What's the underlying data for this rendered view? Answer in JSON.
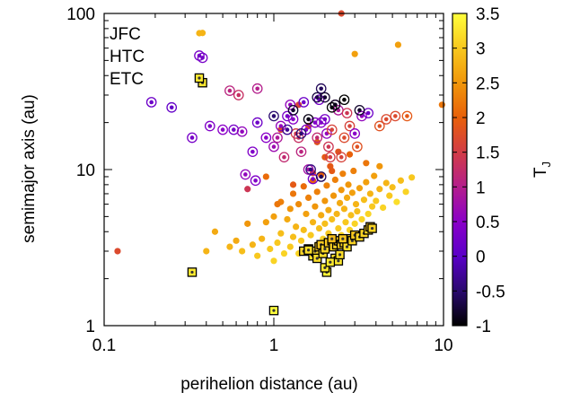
{
  "chart_data": {
    "type": "scatter",
    "title": "",
    "xlabel": "perihelion distance (au)",
    "ylabel": "semimajor axis (au)",
    "x_scale": "log",
    "y_scale": "log",
    "xlim": [
      0.1,
      10
    ],
    "ylim": [
      1,
      100
    ],
    "xticks": [
      "0.1",
      "1",
      "10"
    ],
    "yticks": [
      "1",
      "10",
      "100"
    ],
    "grid": false,
    "legend_position": "top-left",
    "legend": [
      {
        "label": "JFC",
        "marker": "dot"
      },
      {
        "label": "HTC",
        "marker": "ringed-dot"
      },
      {
        "label": "ETC",
        "marker": "boxed-dot"
      }
    ],
    "colorbar": {
      "label": "T",
      "label_subscript": "J",
      "range": [
        -1,
        3.5
      ],
      "ticks": [
        "3.5",
        "3",
        "2.5",
        "2",
        "1.5",
        "1",
        "0.5",
        "0",
        "-0.5",
        "-1"
      ],
      "colors": [
        "#000000",
        "#2a0a6e",
        "#5a00c8",
        "#8a00c8",
        "#b41e8c",
        "#d23c46",
        "#e8600a",
        "#f0960a",
        "#f8c81e",
        "#ffff3c"
      ]
    },
    "series": [
      {
        "name": "JFC",
        "marker": "dot",
        "points": [
          [
            0.12,
            3.0,
            1.7
          ],
          [
            0.4,
            3.0,
            2.8
          ],
          [
            0.45,
            4.0,
            2.7
          ],
          [
            0.55,
            3.2,
            2.8
          ],
          [
            0.6,
            3.5,
            2.7
          ],
          [
            0.65,
            3.0,
            2.9
          ],
          [
            0.7,
            4.5,
            2.5
          ],
          [
            0.75,
            3.3,
            2.8
          ],
          [
            0.8,
            2.8,
            3.0
          ],
          [
            0.85,
            3.6,
            2.8
          ],
          [
            0.9,
            4.6,
            2.6
          ],
          [
            0.95,
            3.1,
            3.0
          ],
          [
            1.0,
            5.0,
            2.6
          ],
          [
            1.0,
            2.6,
            3.1
          ],
          [
            1.05,
            3.4,
            3.0
          ],
          [
            1.1,
            3.9,
            2.9
          ],
          [
            1.1,
            6.2,
            2.3
          ],
          [
            1.15,
            2.9,
            3.1
          ],
          [
            1.2,
            4.8,
            2.7
          ],
          [
            1.25,
            3.2,
            3.0
          ],
          [
            1.25,
            5.6,
            2.5
          ],
          [
            1.3,
            3.7,
            2.9
          ],
          [
            1.3,
            7.0,
            2.2
          ],
          [
            1.35,
            4.3,
            2.8
          ],
          [
            1.4,
            2.9,
            3.1
          ],
          [
            1.4,
            6.0,
            2.4
          ],
          [
            1.45,
            3.5,
            3.0
          ],
          [
            1.5,
            4.1,
            2.9
          ],
          [
            1.5,
            7.8,
            2.1
          ],
          [
            1.55,
            5.2,
            2.6
          ],
          [
            1.6,
            3.0,
            3.1
          ],
          [
            1.6,
            6.6,
            2.3
          ],
          [
            1.65,
            3.8,
            3.0
          ],
          [
            1.7,
            4.6,
            2.8
          ],
          [
            1.7,
            8.5,
            2.0
          ],
          [
            1.75,
            5.8,
            2.5
          ],
          [
            1.8,
            3.3,
            3.1
          ],
          [
            1.8,
            7.2,
            2.3
          ],
          [
            1.85,
            4.2,
            2.9
          ],
          [
            1.9,
            5.1,
            2.7
          ],
          [
            1.9,
            9.2,
            2.0
          ],
          [
            1.95,
            3.6,
            3.1
          ],
          [
            2.0,
            6.3,
            2.5
          ],
          [
            2.0,
            4.5,
            2.9
          ],
          [
            2.05,
            7.9,
            2.3
          ],
          [
            2.1,
            3.9,
            3.0
          ],
          [
            2.1,
            5.5,
            2.7
          ],
          [
            2.15,
            10.5,
            1.9
          ],
          [
            2.2,
            4.8,
            2.9
          ],
          [
            2.25,
            6.8,
            2.5
          ],
          [
            2.3,
            3.5,
            3.2
          ],
          [
            2.3,
            8.6,
            2.3
          ],
          [
            2.35,
            5.2,
            2.8
          ],
          [
            2.4,
            4.2,
            3.0
          ],
          [
            2.45,
            6.1,
            2.7
          ],
          [
            2.5,
            7.4,
            2.5
          ],
          [
            2.5,
            3.8,
            3.1
          ],
          [
            2.55,
            9.4,
            2.3
          ],
          [
            2.6,
            5.6,
            2.8
          ],
          [
            2.65,
            4.6,
            3.0
          ],
          [
            2.7,
            6.6,
            2.7
          ],
          [
            2.75,
            8.0,
            2.5
          ],
          [
            2.8,
            4.1,
            3.1
          ],
          [
            2.85,
            5.1,
            2.9
          ],
          [
            2.9,
            7.1,
            2.6
          ],
          [
            2.95,
            9.8,
            2.3
          ],
          [
            3.0,
            4.5,
            3.1
          ],
          [
            3.05,
            6.0,
            2.8
          ],
          [
            3.1,
            5.4,
            2.9
          ],
          [
            3.2,
            7.6,
            2.6
          ],
          [
            3.3,
            4.8,
            3.1
          ],
          [
            3.4,
            6.4,
            2.9
          ],
          [
            3.5,
            8.3,
            2.6
          ],
          [
            3.6,
            5.2,
            3.1
          ],
          [
            3.7,
            7.0,
            2.8
          ],
          [
            3.8,
            5.8,
            3.0
          ],
          [
            3.9,
            9.1,
            2.6
          ],
          [
            4.0,
            6.3,
            3.0
          ],
          [
            4.2,
            7.5,
            2.8
          ],
          [
            4.4,
            5.7,
            3.1
          ],
          [
            4.6,
            8.2,
            2.8
          ],
          [
            4.8,
            6.8,
            3.0
          ],
          [
            5.0,
            7.7,
            2.9
          ],
          [
            5.3,
            6.2,
            3.2
          ],
          [
            5.6,
            8.5,
            2.9
          ],
          [
            6.0,
            7.2,
            3.1
          ],
          [
            6.5,
            8.9,
            3.0
          ],
          [
            0.38,
            75,
            2.8
          ],
          [
            5.4,
            63,
            2.6
          ],
          [
            9.8,
            26,
            2.2
          ],
          [
            2.5,
            100,
            1.7
          ],
          [
            3.0,
            55,
            2.6
          ],
          [
            2.0,
            12,
            1.9
          ],
          [
            1.8,
            15,
            1.8
          ],
          [
            2.4,
            13,
            1.8
          ],
          [
            1.1,
            18,
            1.7
          ],
          [
            1.6,
            19,
            1.6
          ],
          [
            1.4,
            26,
            1.6
          ],
          [
            3.5,
            11,
            2.2
          ],
          [
            4.2,
            10.5,
            2.5
          ],
          [
            2.8,
            12.5,
            2.0
          ],
          [
            0.7,
            7.5,
            1.4
          ],
          [
            1.7,
            9.5,
            1.7
          ],
          [
            1.3,
            8,
            1.9
          ],
          [
            2.2,
            9.8,
            1.9
          ],
          [
            0.9,
            9,
            2.1
          ],
          [
            1.05,
            6,
            2.2
          ]
        ]
      },
      {
        "name": "HTC",
        "marker": "ringed-dot",
        "points": [
          [
            0.38,
            52,
            0.3
          ],
          [
            0.19,
            27,
            0.2
          ],
          [
            0.25,
            25,
            0.1
          ],
          [
            0.33,
            16,
            0.3
          ],
          [
            0.42,
            19,
            0.4
          ],
          [
            0.5,
            18,
            0.5
          ],
          [
            0.58,
            18,
            0.3
          ],
          [
            0.65,
            17.5,
            0.6
          ],
          [
            0.68,
            9.3,
            0.6
          ],
          [
            0.75,
            13,
            0.4
          ],
          [
            0.78,
            8.5,
            0.4
          ],
          [
            0.8,
            20,
            0.2
          ],
          [
            0.55,
            32,
            1.1
          ],
          [
            0.62,
            30,
            1.3
          ],
          [
            0.8,
            33,
            1.0
          ],
          [
            0.9,
            16,
            0.5
          ],
          [
            1.0,
            14,
            0.7
          ],
          [
            1.05,
            16,
            0.9
          ],
          [
            1.1,
            19,
            0.6
          ],
          [
            1.15,
            12,
            1.2
          ],
          [
            1.2,
            22,
            0.3
          ],
          [
            1.25,
            26,
            0.6
          ],
          [
            1.3,
            21,
            0.5
          ],
          [
            1.35,
            17,
            1.5
          ],
          [
            1.4,
            16,
            1.3
          ],
          [
            1.45,
            13,
            1.1
          ],
          [
            1.5,
            27,
            0.2
          ],
          [
            1.55,
            18,
            0.4
          ],
          [
            1.6,
            10,
            0.8
          ],
          [
            1.7,
            8.7,
            0.3
          ],
          [
            1.75,
            20,
            0.4
          ],
          [
            1.8,
            16,
            1.2
          ],
          [
            1.85,
            28,
            0.3
          ],
          [
            1.9,
            20,
            0.5
          ],
          [
            2.0,
            21,
            0.3
          ],
          [
            2.05,
            17,
            0.6
          ],
          [
            2.1,
            14,
            1.4
          ],
          [
            2.15,
            12,
            1.5
          ],
          [
            2.2,
            18,
            1.6
          ],
          [
            2.3,
            26,
            0.5
          ],
          [
            2.4,
            24,
            0.9
          ],
          [
            2.5,
            12,
            1.6
          ],
          [
            2.6,
            16,
            1.7
          ],
          [
            2.7,
            23,
            1.4
          ],
          [
            2.8,
            19,
            1.6
          ],
          [
            3.0,
            17,
            0.5
          ],
          [
            3.1,
            14,
            1.8
          ],
          [
            3.3,
            22,
            0.6
          ],
          [
            3.6,
            23,
            0.2
          ],
          [
            4.2,
            19,
            1.8
          ],
          [
            4.6,
            21,
            1.7
          ],
          [
            5.2,
            22,
            1.7
          ],
          [
            6.1,
            22,
            1.9
          ],
          [
            1.0,
            22,
            -0.5
          ],
          [
            1.2,
            18,
            -0.3
          ],
          [
            1.3,
            24,
            -0.8
          ],
          [
            1.6,
            21,
            -0.9
          ],
          [
            1.8,
            29,
            -0.7
          ],
          [
            1.9,
            33,
            -0.6
          ],
          [
            2.2,
            25,
            -1.0
          ],
          [
            2.3,
            26,
            -0.9
          ],
          [
            2.6,
            28,
            -1.0
          ],
          [
            3.2,
            24,
            -0.8
          ],
          [
            1.45,
            17,
            -0.5
          ],
          [
            2.0,
            29,
            -0.8
          ],
          [
            1.65,
            10,
            -0.4
          ],
          [
            1.9,
            9,
            -0.6
          ]
        ]
      },
      {
        "name": "ETC",
        "marker": "boxed-dot",
        "points": [
          [
            0.38,
            36,
            3.3
          ],
          [
            0.33,
            2.2,
            3.3
          ],
          [
            1.0,
            1.25,
            3.5
          ],
          [
            1.5,
            3.0,
            3.1
          ],
          [
            1.6,
            3.1,
            3.1
          ],
          [
            1.7,
            2.8,
            3.2
          ],
          [
            1.75,
            3.0,
            3.1
          ],
          [
            1.8,
            2.7,
            3.2
          ],
          [
            1.85,
            3.2,
            3.0
          ],
          [
            1.9,
            3.3,
            3.0
          ],
          [
            1.95,
            2.9,
            3.2
          ],
          [
            2.0,
            3.1,
            3.1
          ],
          [
            2.05,
            2.2,
            3.4
          ],
          [
            2.0,
            2.35,
            3.3
          ],
          [
            2.1,
            3.4,
            3.0
          ],
          [
            2.2,
            3.5,
            3.0
          ],
          [
            2.25,
            3.2,
            3.1
          ],
          [
            2.3,
            2.7,
            3.2
          ],
          [
            2.35,
            3.3,
            3.1
          ],
          [
            2.4,
            2.6,
            3.3
          ],
          [
            2.4,
            3.5,
            3.0
          ],
          [
            2.5,
            3.3,
            3.1
          ],
          [
            2.6,
            3.4,
            3.1
          ],
          [
            2.7,
            3.2,
            3.2
          ],
          [
            2.8,
            3.6,
            3.1
          ],
          [
            2.9,
            3.5,
            3.1
          ],
          [
            3.0,
            3.8,
            3.0
          ],
          [
            3.2,
            3.7,
            3.1
          ],
          [
            3.4,
            3.9,
            3.1
          ],
          [
            3.6,
            4.1,
            3.1
          ],
          [
            3.7,
            4.3,
            3.0
          ],
          [
            3.8,
            4.2,
            3.1
          ],
          [
            2.2,
            3.6,
            2.9
          ],
          [
            2.55,
            3.6,
            3.0
          ],
          [
            1.6,
            3.05,
            3.2
          ],
          [
            2.15,
            2.55,
            3.3
          ],
          [
            2.45,
            2.85,
            3.2
          ]
        ]
      }
    ]
  }
}
